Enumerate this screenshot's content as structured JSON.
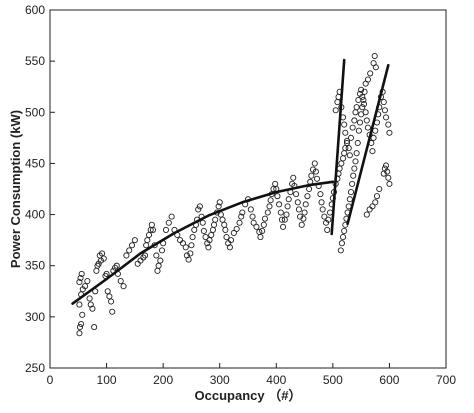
{
  "chart_data": {
    "type": "scatter",
    "xlabel": "Occupancy （#）",
    "ylabel": "Power Consumption (kW)",
    "xlim": [
      0,
      700
    ],
    "ylim": [
      250,
      600
    ],
    "xticks": [
      0,
      100,
      200,
      300,
      400,
      500,
      600,
      700
    ],
    "yticks": [
      250,
      300,
      350,
      400,
      450,
      500,
      550,
      600
    ],
    "grid": false,
    "legend": "none",
    "colors": {
      "points": "#222222",
      "fit_lines": "#111111"
    },
    "points": [
      [
        52,
        284
      ],
      [
        53,
        290
      ],
      [
        55,
        293
      ],
      [
        57,
        302
      ],
      [
        52,
        312
      ],
      [
        55,
        322
      ],
      [
        58,
        327
      ],
      [
        52,
        334
      ],
      [
        54,
        338
      ],
      [
        56,
        342
      ],
      [
        62,
        330
      ],
      [
        66,
        335
      ],
      [
        70,
        318
      ],
      [
        72,
        312
      ],
      [
        75,
        308
      ],
      [
        78,
        290
      ],
      [
        80,
        325
      ],
      [
        82,
        345
      ],
      [
        84,
        350
      ],
      [
        86,
        352
      ],
      [
        88,
        360
      ],
      [
        90,
        355
      ],
      [
        92,
        362
      ],
      [
        95,
        357
      ],
      [
        98,
        340
      ],
      [
        100,
        342
      ],
      [
        102,
        325
      ],
      [
        105,
        320
      ],
      [
        108,
        315
      ],
      [
        110,
        305
      ],
      [
        112,
        345
      ],
      [
        115,
        348
      ],
      [
        118,
        350
      ],
      [
        120,
        342
      ],
      [
        125,
        335
      ],
      [
        130,
        330
      ],
      [
        135,
        360
      ],
      [
        140,
        365
      ],
      [
        145,
        370
      ],
      [
        150,
        375
      ],
      [
        155,
        352
      ],
      [
        160,
        355
      ],
      [
        165,
        358
      ],
      [
        168,
        360
      ],
      [
        170,
        370
      ],
      [
        172,
        375
      ],
      [
        175,
        380
      ],
      [
        178,
        385
      ],
      [
        180,
        390
      ],
      [
        182,
        385
      ],
      [
        185,
        370
      ],
      [
        188,
        360
      ],
      [
        190,
        345
      ],
      [
        192,
        350
      ],
      [
        195,
        355
      ],
      [
        198,
        365
      ],
      [
        200,
        372
      ],
      [
        205,
        385
      ],
      [
        210,
        392
      ],
      [
        215,
        398
      ],
      [
        220,
        385
      ],
      [
        225,
        380
      ],
      [
        230,
        375
      ],
      [
        235,
        372
      ],
      [
        240,
        368
      ],
      [
        242,
        360
      ],
      [
        245,
        356
      ],
      [
        248,
        362
      ],
      [
        250,
        370
      ],
      [
        252,
        378
      ],
      [
        255,
        385
      ],
      [
        258,
        390
      ],
      [
        260,
        395
      ],
      [
        262,
        405
      ],
      [
        265,
        408
      ],
      [
        268,
        398
      ],
      [
        270,
        392
      ],
      [
        272,
        384
      ],
      [
        275,
        378
      ],
      [
        278,
        372
      ],
      [
        280,
        368
      ],
      [
        282,
        375
      ],
      [
        285,
        380
      ],
      [
        288,
        385
      ],
      [
        290,
        390
      ],
      [
        292,
        395
      ],
      [
        295,
        402
      ],
      [
        298,
        408
      ],
      [
        300,
        412
      ],
      [
        302,
        400
      ],
      [
        305,
        395
      ],
      [
        308,
        390
      ],
      [
        310,
        385
      ],
      [
        312,
        378
      ],
      [
        315,
        372
      ],
      [
        318,
        368
      ],
      [
        320,
        375
      ],
      [
        325,
        382
      ],
      [
        330,
        386
      ],
      [
        335,
        392
      ],
      [
        338,
        398
      ],
      [
        340,
        402
      ],
      [
        345,
        410
      ],
      [
        350,
        415
      ],
      [
        355,
        405
      ],
      [
        358,
        398
      ],
      [
        360,
        392
      ],
      [
        365,
        388
      ],
      [
        370,
        383
      ],
      [
        372,
        378
      ],
      [
        375,
        384
      ],
      [
        378,
        390
      ],
      [
        380,
        396
      ],
      [
        385,
        402
      ],
      [
        388,
        408
      ],
      [
        390,
        414
      ],
      [
        392,
        420
      ],
      [
        395,
        425
      ],
      [
        398,
        430
      ],
      [
        400,
        425
      ],
      [
        402,
        418
      ],
      [
        405,
        410
      ],
      [
        408,
        402
      ],
      [
        410,
        395
      ],
      [
        412,
        388
      ],
      [
        415,
        395
      ],
      [
        418,
        400
      ],
      [
        420,
        408
      ],
      [
        422,
        415
      ],
      [
        425,
        422
      ],
      [
        428,
        430
      ],
      [
        430,
        436
      ],
      [
        432,
        428
      ],
      [
        435,
        420
      ],
      [
        438,
        412
      ],
      [
        440,
        405
      ],
      [
        442,
        398
      ],
      [
        445,
        390
      ],
      [
        448,
        396
      ],
      [
        450,
        402
      ],
      [
        452,
        410
      ],
      [
        455,
        418
      ],
      [
        458,
        425
      ],
      [
        460,
        432
      ],
      [
        462,
        438
      ],
      [
        465,
        444
      ],
      [
        468,
        450
      ],
      [
        470,
        442
      ],
      [
        472,
        435
      ],
      [
        475,
        428
      ],
      [
        478,
        420
      ],
      [
        480,
        412
      ],
      [
        482,
        405
      ],
      [
        485,
        398
      ],
      [
        488,
        392
      ],
      [
        490,
        385
      ],
      [
        492,
        395
      ],
      [
        495,
        402
      ],
      [
        498,
        410
      ],
      [
        500,
        416
      ],
      [
        502,
        422
      ],
      [
        505,
        430
      ],
      [
        508,
        435
      ],
      [
        510,
        440
      ],
      [
        512,
        445
      ],
      [
        515,
        450
      ],
      [
        518,
        455
      ],
      [
        520,
        460
      ],
      [
        522,
        465
      ],
      [
        525,
        470
      ],
      [
        505,
        502
      ],
      [
        508,
        510
      ],
      [
        510,
        515
      ],
      [
        512,
        520
      ],
      [
        515,
        505
      ],
      [
        518,
        495
      ],
      [
        520,
        488
      ],
      [
        522,
        480
      ],
      [
        525,
        472
      ],
      [
        528,
        465
      ],
      [
        530,
        458
      ],
      [
        532,
        475
      ],
      [
        535,
        485
      ],
      [
        538,
        492
      ],
      [
        540,
        500
      ],
      [
        542,
        505
      ],
      [
        545,
        512
      ],
      [
        548,
        518
      ],
      [
        550,
        522
      ],
      [
        552,
        515
      ],
      [
        555,
        508
      ],
      [
        558,
        500
      ],
      [
        560,
        492
      ],
      [
        562,
        485
      ],
      [
        565,
        478
      ],
      [
        568,
        470
      ],
      [
        570,
        462
      ],
      [
        572,
        475
      ],
      [
        575,
        482
      ],
      [
        578,
        490
      ],
      [
        580,
        498
      ],
      [
        582,
        505
      ],
      [
        585,
        515
      ],
      [
        588,
        520
      ],
      [
        590,
        510
      ],
      [
        592,
        502
      ],
      [
        594,
        495
      ],
      [
        598,
        488
      ],
      [
        600,
        480
      ],
      [
        572,
        548
      ],
      [
        574,
        555
      ],
      [
        576,
        544
      ],
      [
        566,
        538
      ],
      [
        562,
        532
      ],
      [
        558,
        528
      ],
      [
        556,
        520
      ],
      [
        554,
        512
      ],
      [
        552,
        505
      ],
      [
        550,
        498
      ],
      [
        548,
        490
      ],
      [
        546,
        482
      ],
      [
        544,
        470
      ],
      [
        542,
        460
      ],
      [
        540,
        452
      ],
      [
        538,
        445
      ],
      [
        536,
        438
      ],
      [
        534,
        430
      ],
      [
        532,
        422
      ],
      [
        530,
        415
      ],
      [
        528,
        408
      ],
      [
        526,
        402
      ],
      [
        524,
        396
      ],
      [
        522,
        390
      ],
      [
        520,
        384
      ],
      [
        518,
        378
      ],
      [
        516,
        372
      ],
      [
        514,
        365
      ],
      [
        590,
        440
      ],
      [
        592,
        445
      ],
      [
        594,
        448
      ],
      [
        596,
        442
      ],
      [
        598,
        436
      ],
      [
        600,
        430
      ],
      [
        582,
        425
      ],
      [
        578,
        418
      ],
      [
        575,
        412
      ],
      [
        570,
        408
      ],
      [
        565,
        405
      ],
      [
        560,
        400
      ]
    ],
    "fit_lines": [
      {
        "points": [
          [
            40,
            313
          ],
          [
            100,
            337
          ],
          [
            160,
            362
          ],
          [
            220,
            382
          ],
          [
            280,
            399
          ],
          [
            340,
            412
          ],
          [
            400,
            422
          ],
          [
            460,
            429
          ],
          [
            500,
            432
          ]
        ]
      },
      {
        "points": [
          [
            498,
            381
          ],
          [
            520,
            551
          ]
        ]
      },
      {
        "points": [
          [
            526,
            391
          ],
          [
            598,
            546
          ]
        ]
      }
    ]
  }
}
